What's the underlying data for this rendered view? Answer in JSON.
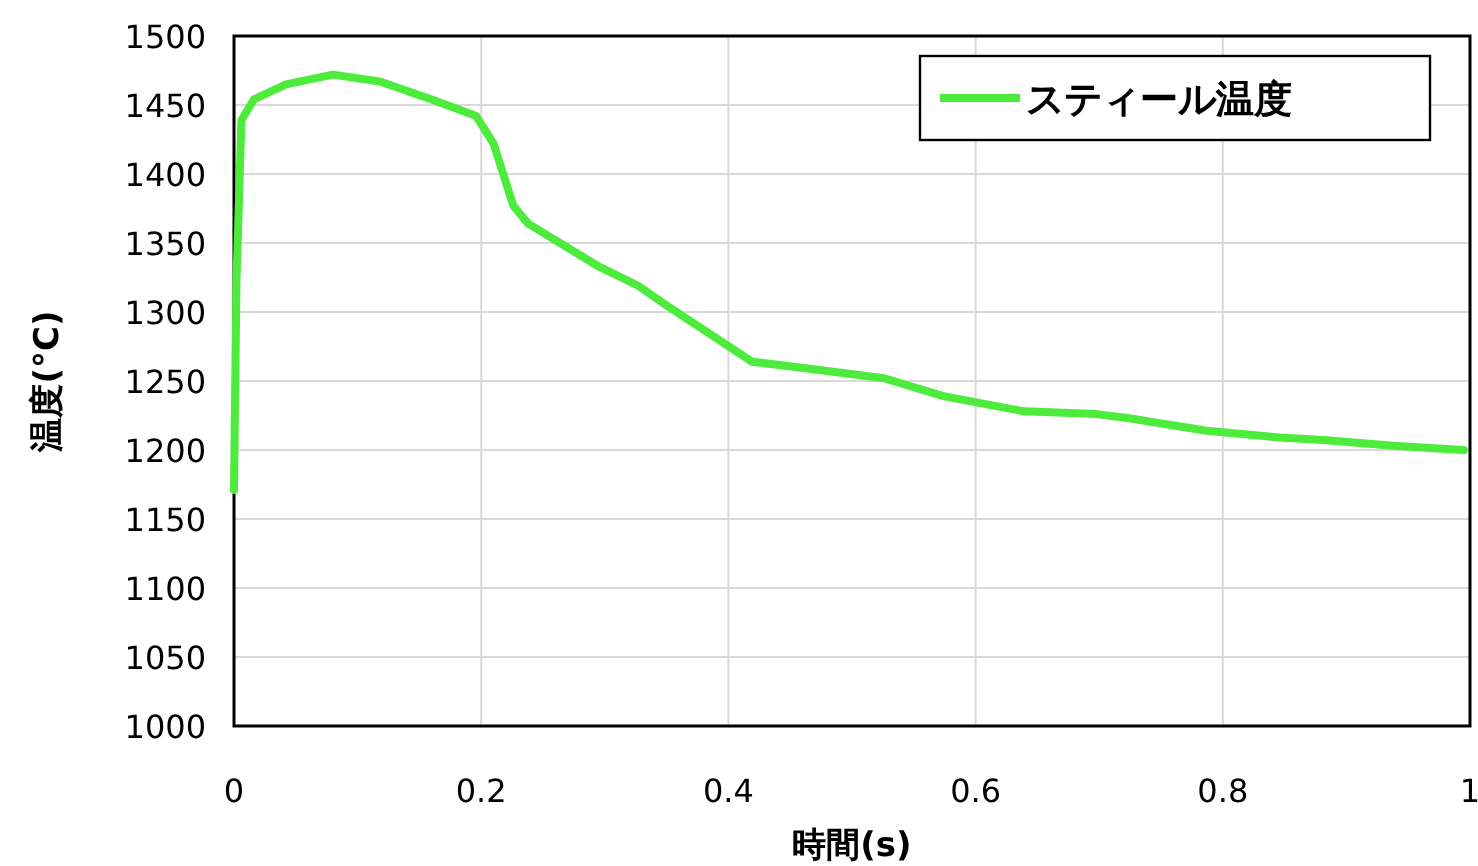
{
  "chart_data": {
    "type": "line",
    "xlabel": "時間(s)",
    "ylabel": "温度(°C)",
    "x": [
      0,
      0.002,
      0.006,
      0.016,
      0.042,
      0.08,
      0.118,
      0.16,
      0.196,
      0.21,
      0.226,
      0.238,
      0.295,
      0.327,
      0.348,
      0.419,
      0.456,
      0.526,
      0.574,
      0.639,
      0.698,
      0.724,
      0.787,
      0.846,
      0.884,
      0.938,
      0.995
    ],
    "series": [
      {
        "name": "スティール温度",
        "color": "#4ceb3c",
        "values": [
          1171,
          1323,
          1439,
          1454,
          1465,
          1472,
          1467,
          1454,
          1442,
          1422,
          1377,
          1364,
          1333,
          1319,
          1306,
          1264,
          1260,
          1252,
          1239,
          1228,
          1226,
          1223,
          1214,
          1209,
          1207,
          1203,
          1200
        ]
      }
    ],
    "xlim": [
      0,
      1
    ],
    "ylim": [
      1000,
      1500
    ],
    "xticks": [
      0,
      0.2,
      0.4,
      0.6,
      0.8,
      1
    ],
    "yticks": [
      1000,
      1050,
      1100,
      1150,
      1200,
      1250,
      1300,
      1350,
      1400,
      1450,
      1500
    ],
    "grid": true,
    "legend": "top right"
  }
}
